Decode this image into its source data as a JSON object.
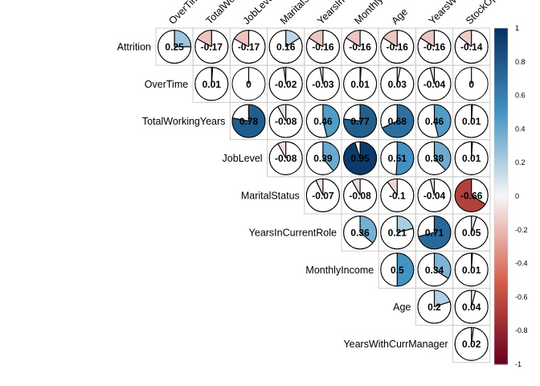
{
  "chart_data": {
    "type": "heatmap",
    "method": "pie",
    "layout": "upper-triangle",
    "rows": [
      "Attrition",
      "OverTime",
      "TotalWorkingYears",
      "JobLevel",
      "MaritalStatus",
      "YearsInCurrentRole",
      "MonthlyIncome",
      "Age",
      "YearsWithCurrManager"
    ],
    "columns_visible": [
      "OverTim",
      "TotalWo",
      "JobLeve",
      "MaritalS",
      "YearsIn",
      "Monthly",
      "Age",
      "YearsW",
      "StockOp"
    ],
    "cells": [
      [
        "0.25",
        "-0.17",
        "-0.17",
        "0.16",
        "-0.16",
        "-0.16",
        "-0.16",
        "-0.16",
        "-0.14"
      ],
      [
        null,
        "0.01",
        "0",
        "-0.02",
        "-0.03",
        "0.01",
        "0.03",
        "-0.04",
        "0"
      ],
      [
        null,
        null,
        "0.78",
        "-0.08",
        "0.46",
        "0.77",
        "0.68",
        "0.46",
        "0.01"
      ],
      [
        null,
        null,
        null,
        "-0.08",
        "0.39",
        "0.95",
        "0.51",
        "0.38",
        "0.01"
      ],
      [
        null,
        null,
        null,
        null,
        "-0.07",
        "-0.08",
        "-0.1",
        "-0.04",
        "-0.66"
      ],
      [
        null,
        null,
        null,
        null,
        null,
        "0.36",
        "0.21",
        "0.71",
        "0.05"
      ],
      [
        null,
        null,
        null,
        null,
        null,
        null,
        "0.5",
        "0.34",
        "0.01"
      ],
      [
        null,
        null,
        null,
        null,
        null,
        null,
        null,
        "0.2",
        "0.04"
      ],
      [
        null,
        null,
        null,
        null,
        null,
        null,
        null,
        null,
        "0.02"
      ]
    ],
    "colorbar": {
      "range": [
        -1,
        1
      ],
      "ticks": [
        "1",
        "0.8",
        "0.6",
        "0.4",
        "0.2",
        "0",
        "-0.2",
        "-0.4",
        "-0.6",
        "-0.8",
        "-1"
      ]
    },
    "colors": {
      "neg_strong": "#67001f",
      "neg_mid": "#d6604d",
      "neutral": "#f7f7f7",
      "pos_mid": "#4393c3",
      "pos_strong": "#053061"
    }
  }
}
